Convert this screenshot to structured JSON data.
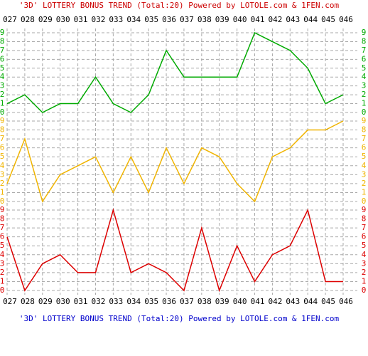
{
  "chart_data": {
    "type": "line",
    "title": "'3D' LOTTERY BONUS TREND (Total:20)  Powered by LOTOLE.com & 1FEN.com",
    "categories": [
      "027",
      "028",
      "029",
      "030",
      "031",
      "032",
      "033",
      "034",
      "035",
      "036",
      "037",
      "038",
      "039",
      "040",
      "041",
      "042",
      "043",
      "044",
      "045",
      "046"
    ],
    "grid": true,
    "series": [
      {
        "color": "#00aa00",
        "ylim": [
          0,
          9
        ],
        "yticks": [
          0,
          1,
          2,
          3,
          4,
          5,
          6,
          7,
          8,
          9
        ],
        "values": [
          1,
          2,
          0,
          1,
          1,
          4,
          1,
          0,
          2,
          7,
          4,
          4,
          4,
          4,
          9,
          8,
          7,
          5,
          1,
          2
        ]
      },
      {
        "color": "#f0b400",
        "ylim": [
          0,
          9
        ],
        "yticks": [
          0,
          1,
          2,
          3,
          4,
          5,
          6,
          7,
          8,
          9
        ],
        "values": [
          2,
          7,
          0,
          3,
          4,
          5,
          1,
          5,
          1,
          6,
          2,
          6,
          5,
          2,
          0,
          5,
          6,
          8,
          8,
          9
        ]
      },
      {
        "color": "#dd0000",
        "ylim": [
          0,
          9
        ],
        "yticks": [
          0,
          1,
          2,
          3,
          4,
          5,
          6,
          7,
          8,
          9
        ],
        "values": [
          6,
          0,
          3,
          4,
          2,
          2,
          9,
          2,
          3,
          2,
          0,
          7,
          0,
          5,
          1,
          4,
          5,
          9,
          1,
          1
        ]
      }
    ]
  }
}
